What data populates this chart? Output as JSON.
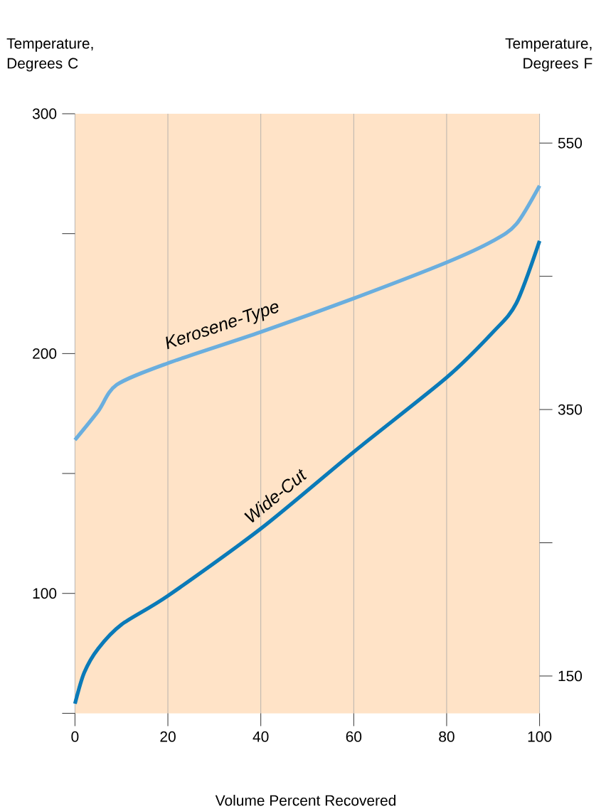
{
  "chart_data": {
    "type": "line",
    "xlabel": "Volume Percent Recovered",
    "ylabel": "Temperature, Degrees C",
    "y2label": "Temperature, Degrees F",
    "xlim": [
      0,
      100
    ],
    "xticks": [
      0,
      20,
      40,
      60,
      80,
      100
    ],
    "ylim": [
      50,
      300
    ],
    "yticks": [
      {
        "value": 50,
        "label": null
      },
      100,
      {
        "value": 150,
        "label": null
      },
      200,
      {
        "value": 250,
        "label": null
      },
      300
    ],
    "y2lim": [
      122,
      572
    ],
    "y2ticks": [
      150,
      {
        "value": 250,
        "label": null
      },
      350,
      {
        "value": 450,
        "label": null
      },
      550
    ],
    "grid": "x",
    "series": [
      {
        "name": "Kerosene-Type",
        "color": "#6aaede",
        "x": [
          0,
          5,
          9,
          20,
          40,
          60,
          80,
          90,
          95,
          100
        ],
        "values": [
          164,
          176,
          187,
          196,
          209,
          223,
          238,
          247,
          254,
          270
        ]
      },
      {
        "name": "Wide-Cut",
        "color": "#0a7ab8",
        "x": [
          0,
          2,
          5,
          10,
          20,
          40,
          60,
          80,
          90,
          95,
          100
        ],
        "values": [
          54,
          67,
          77,
          87,
          99,
          127,
          159,
          190,
          209,
          221,
          247
        ]
      }
    ]
  }
}
